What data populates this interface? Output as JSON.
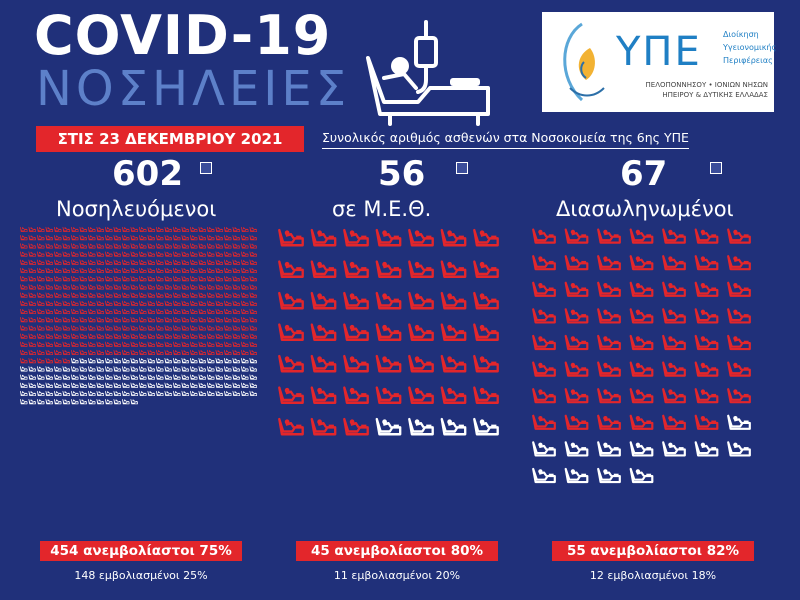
{
  "header": {
    "title_line1": "COVID-19",
    "title_line2": "ΝΟΣΗΛΕΙΕΣ",
    "date_badge": "ΣΤΙΣ 23 ΔΕΚΕΜΒΡΙΟΥ 2021",
    "subtitle": "Συνολικός αριθμός ασθενών στα Νοσοκομεία της 6ης ΥΠΕ"
  },
  "logo": {
    "name": "ΥΠΕ",
    "side_lines": [
      "Διοίκηση",
      "Υγειονομικής",
      "Περιφέρειας"
    ],
    "region_line1": "ΠΕΛΟΠΟΝΝΗΣΟΥ • ΙΟΝΙΩΝ ΝΗΣΩΝ",
    "region_line2": "ΗΠΕΙΡΟΥ & ΔΥΤΙΚΗΣ ΕΛΛΑΔΑΣ"
  },
  "colors": {
    "background": "#20307a",
    "red": "#e3262b",
    "white": "#ffffff",
    "accent_blue": "#5d80c9"
  },
  "panels": [
    {
      "total": "602",
      "label": "Νοσηλευόμενοι",
      "unvaccinated_count": 454,
      "vaccinated_count": 148,
      "unvaccinated_text": "454 ανεμβολίαστοι 75%",
      "vaccinated_text": "148 εμβολιασμένοι 25%",
      "icon": "hospital-bed-icon"
    },
    {
      "total": "56",
      "label": "σε Μ.Ε.Θ.",
      "unvaccinated_count": 45,
      "vaccinated_count": 11,
      "unvaccinated_text": "45 ανεμβολίαστοι 80%",
      "vaccinated_text": "11 εμβολιασμένοι 20%",
      "icon": "icu-bed-icon"
    },
    {
      "total": "67",
      "label": "Διασωληνωμένοι",
      "unvaccinated_count": 55,
      "vaccinated_count": 12,
      "unvaccinated_text": "55 ανεμβολίαστοι 82%",
      "vaccinated_text": "12 εμβολιασμένοι 18%",
      "icon": "intubated-bed-icon"
    }
  ]
}
